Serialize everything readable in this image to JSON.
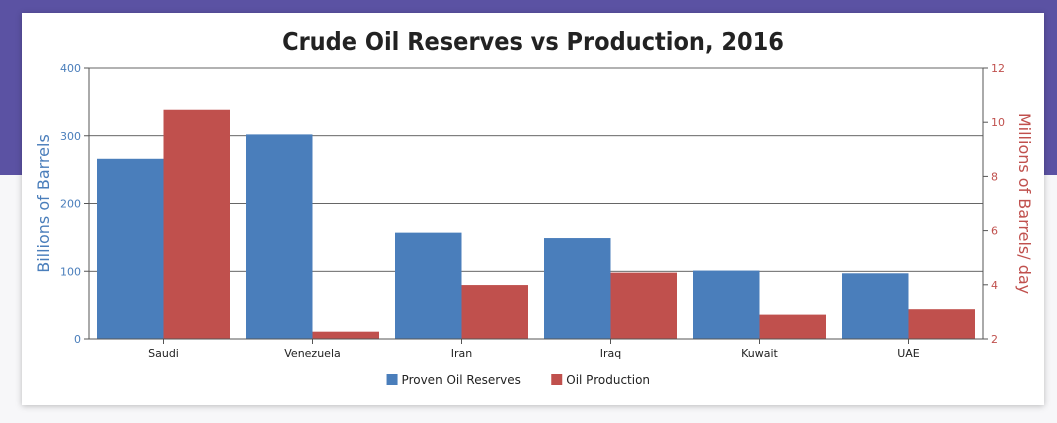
{
  "chart_data": {
    "type": "bar",
    "title": "Crude Oil Reserves vs Production, 2016",
    "categories": [
      "Saudi",
      "Venezuela",
      "Iran",
      "Iraq",
      "Kuwait",
      "UAE"
    ],
    "series": [
      {
        "name": "Proven Oil Reserves",
        "axis": "left",
        "color": "#4a7ebb",
        "values": [
          266,
          302,
          157,
          149,
          101,
          97
        ]
      },
      {
        "name": "Oil Production",
        "axis": "right",
        "color": "#c0504d",
        "values": [
          10.46,
          2.27,
          3.99,
          4.45,
          2.9,
          3.1
        ]
      }
    ],
    "ylabel": "Billions of Barrels",
    "ylim": [
      0,
      400
    ],
    "yticks": [
      "0",
      "100",
      "200",
      "300",
      "400"
    ],
    "y2label": "Millions of Barrels/ day",
    "y2lim": [
      2,
      12
    ],
    "y2ticks": [
      "2",
      "4",
      "6",
      "8",
      "10",
      "12"
    ],
    "grid": true,
    "legend_position": "bottom-center"
  },
  "colors": {
    "left_axis": "#4a7ebb",
    "right_axis": "#c0504d",
    "header_band": "#5b52a3"
  }
}
